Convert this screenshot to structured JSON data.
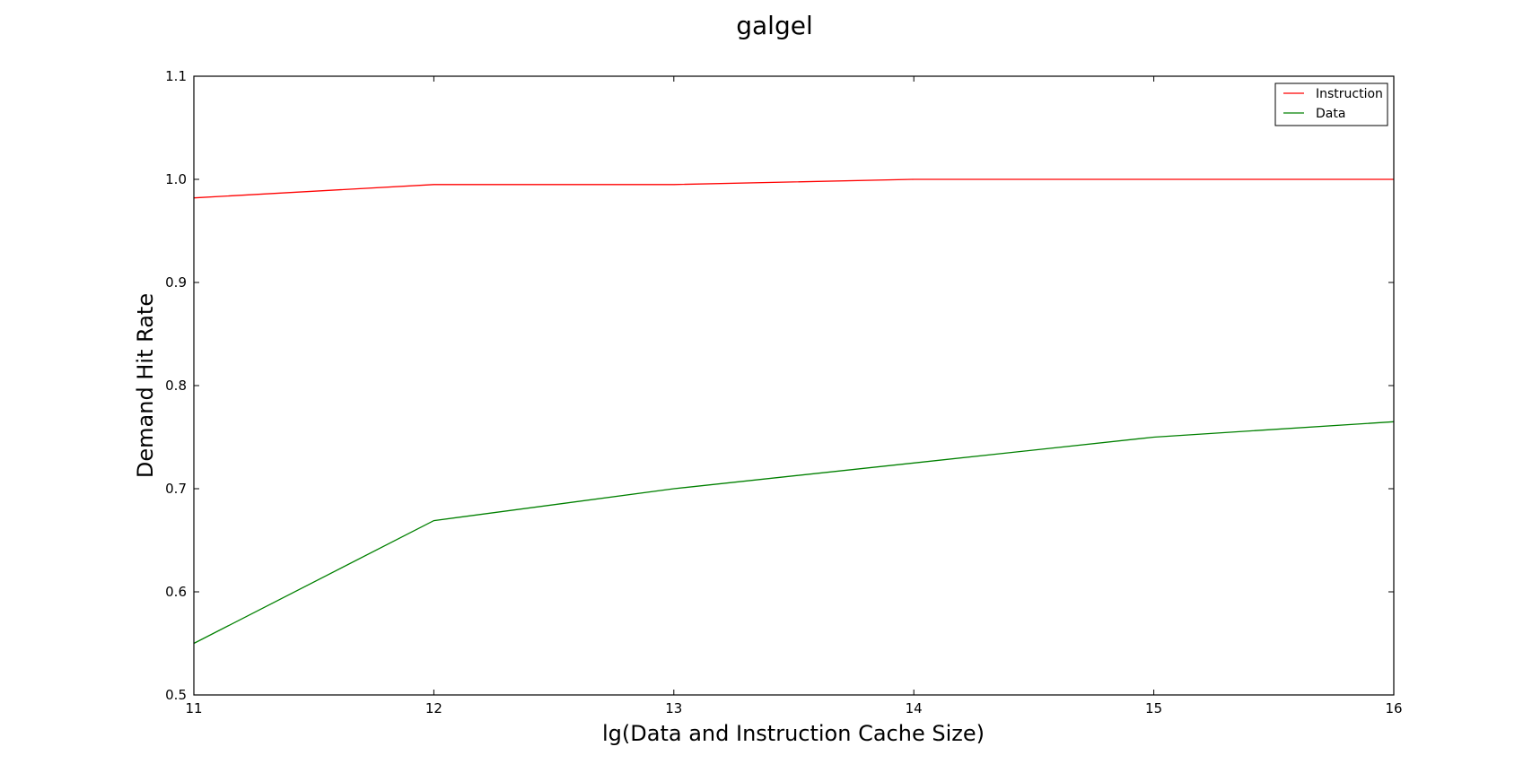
{
  "chart_data": {
    "type": "line",
    "title": "galgel",
    "xlabel": "lg(Data and Instruction Cache Size)",
    "ylabel": "Demand Hit Rate",
    "x": [
      11,
      12,
      13,
      14,
      15,
      16
    ],
    "xlim": [
      11,
      16
    ],
    "ylim": [
      0.5,
      1.1
    ],
    "xticks": [
      "11",
      "12",
      "13",
      "14",
      "15",
      "16"
    ],
    "yticks": [
      "0.5",
      "0.6",
      "0.7",
      "0.8",
      "0.9",
      "1.0",
      "1.1"
    ],
    "grid": false,
    "legend_position": "top-right",
    "series": [
      {
        "name": "Instruction",
        "color": "#ff0000",
        "values": [
          0.982,
          0.995,
          0.995,
          1.0,
          1.0,
          1.0
        ]
      },
      {
        "name": "Data",
        "color": "#008000",
        "values": [
          0.55,
          0.669,
          0.7,
          0.725,
          0.75,
          0.765
        ]
      }
    ]
  }
}
